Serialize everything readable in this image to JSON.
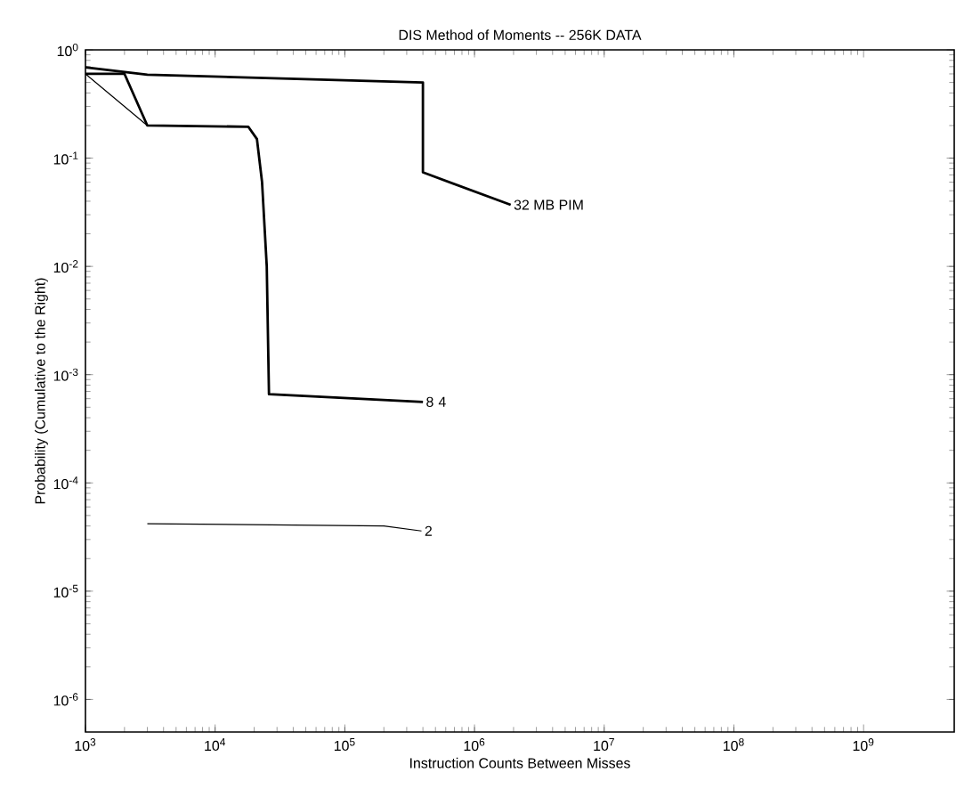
{
  "chart_data": {
    "type": "line",
    "title": "DIS Method of Moments -- 256K DATA",
    "xlabel": "Instruction Counts Between Misses",
    "ylabel": "Probability (Cumulative to the Right)",
    "log": "xy",
    "grid": false,
    "legend": false,
    "marker": "none",
    "line_style": "solid",
    "xlim": [
      1000,
      5000000000
    ],
    "ylim": [
      5e-07,
      1
    ],
    "xticks": [
      {
        "value": 1000,
        "label": "10$^{3}$"
      },
      {
        "value": 10000,
        "label": "10$^{4}$"
      },
      {
        "value": 100000,
        "label": "10$^{5}$"
      },
      {
        "value": 1000000,
        "label": "10$^{6}$"
      },
      {
        "value": 10000000,
        "label": "10$^{7}$"
      },
      {
        "value": 100000000,
        "label": "10$^{8}$"
      },
      {
        "value": 1000000000,
        "label": "10$^{9}$"
      }
    ],
    "yticks": [
      {
        "value": 1e-06,
        "label": "10$^{-6}$"
      },
      {
        "value": 1e-05,
        "label": "10$^{-5}$"
      },
      {
        "value": 0.0001,
        "label": "10$^{-4}$"
      },
      {
        "value": 0.001,
        "label": "10$^{-3}$"
      },
      {
        "value": 0.01,
        "label": "10$^{-2}$"
      },
      {
        "value": 0.1,
        "label": "10$^{-1}$"
      },
      {
        "value": 1,
        "label": "10$^{0}$"
      }
    ],
    "series": [
      {
        "name": "32 MB PIM",
        "color": "#000000",
        "x": [
          1000,
          3000,
          400000,
          400000,
          1900000
        ],
        "values": [
          0.69,
          0.59,
          0.5,
          0.074,
          0.037
        ]
      },
      {
        "name": "8",
        "color": "#000000",
        "x": [
          1000,
          2000,
          3000,
          18000,
          21000,
          23000,
          25000,
          26000,
          400000
        ],
        "values": [
          0.6,
          0.6,
          0.2,
          0.195,
          0.15,
          0.06,
          0.01,
          0.00066,
          0.00056
        ]
      },
      {
        "name": "4",
        "color": "#000000",
        "x": [
          1000,
          3000,
          18000,
          21000,
          23000,
          25000,
          26000,
          400000
        ],
        "values": [
          0.6,
          0.2,
          0.195,
          0.15,
          0.06,
          0.01,
          0.00066,
          0.00056
        ]
      },
      {
        "name": "2",
        "color": "#000000",
        "x": [
          3000,
          200000,
          390000
        ],
        "values": [
          4.2e-05,
          4e-05,
          3.6e-05
        ]
      }
    ]
  }
}
